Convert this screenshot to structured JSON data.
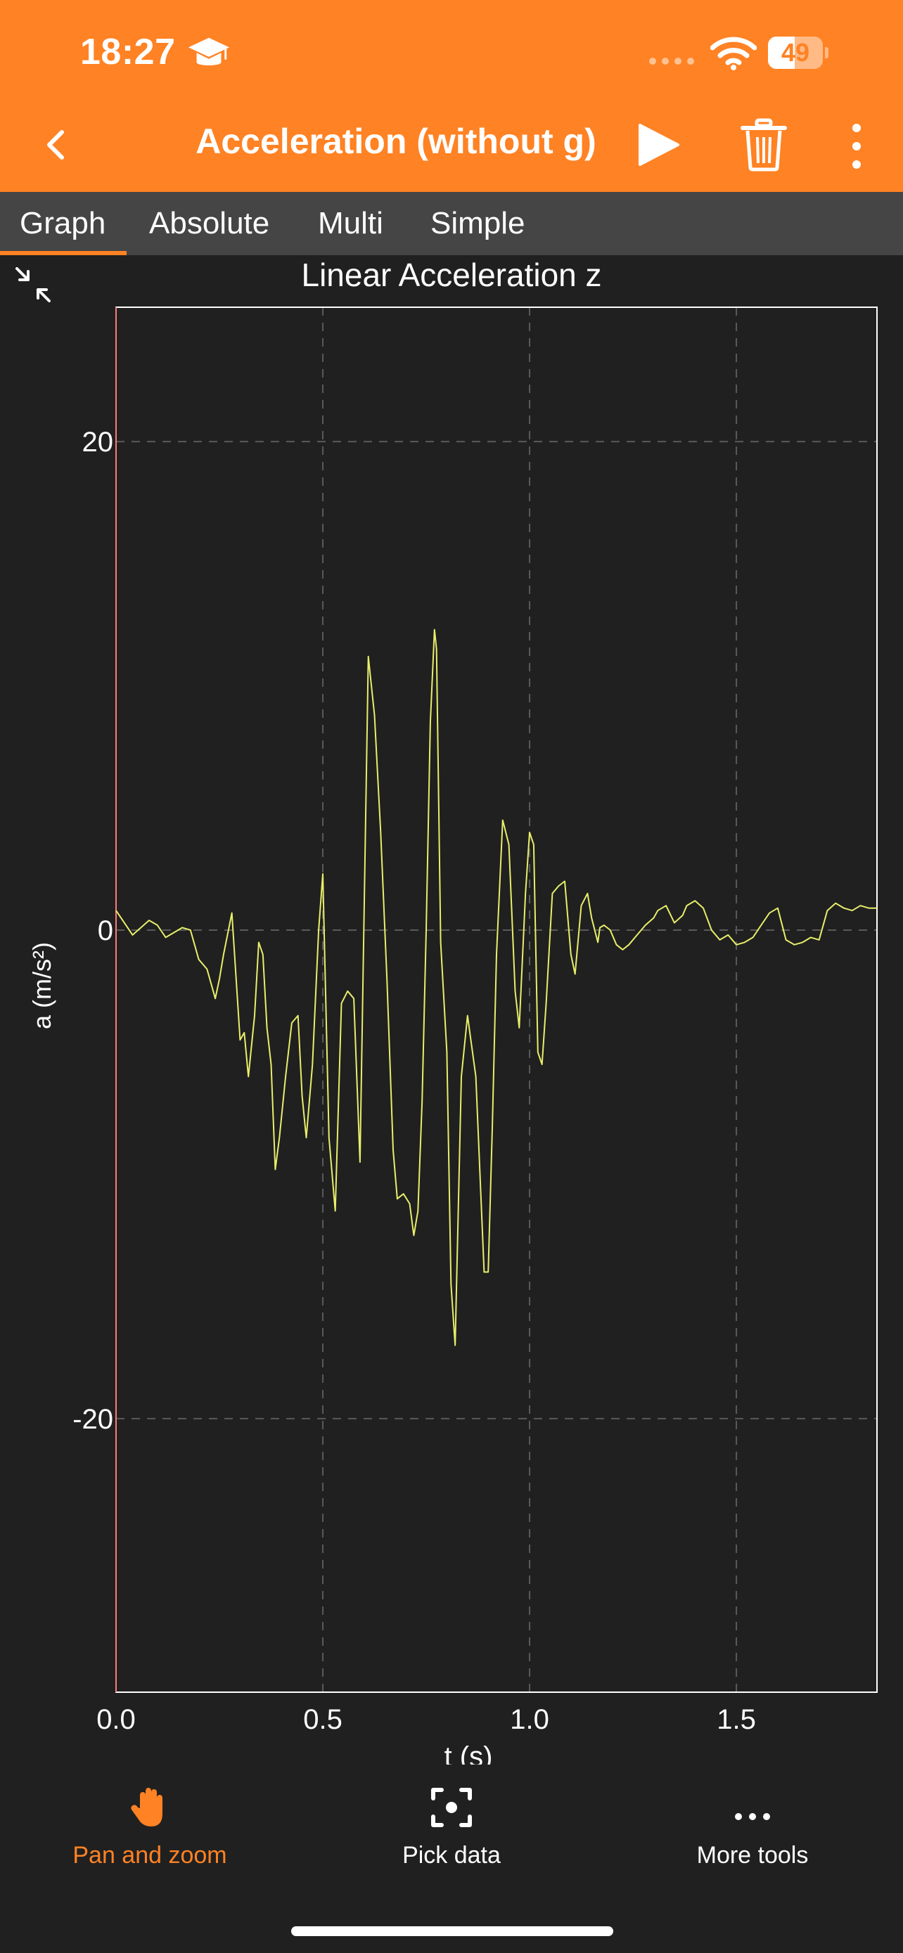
{
  "status_bar": {
    "time": "18:27",
    "battery": "49",
    "battery_level": 0.49
  },
  "header": {
    "title": "Acceleration (without g)"
  },
  "tabs": [
    {
      "label": "Graph",
      "active": true
    },
    {
      "label": "Absolute",
      "active": false
    },
    {
      "label": "Multi",
      "active": false
    },
    {
      "label": "Simple",
      "active": false
    }
  ],
  "toolbar": {
    "pan_zoom_label": "Pan and zoom",
    "pick_data_label": "Pick data",
    "more_tools_label": "More tools"
  },
  "colors": {
    "accent": "#ff8224",
    "background": "#202020",
    "tab_bar": "#454545",
    "series_line": "#e8ee6a"
  },
  "chart_data": {
    "type": "line",
    "title": "Linear Acceleration z",
    "xlabel": "t (s)",
    "ylabel": "a (m/s²)",
    "xlim": [
      0.0,
      1.84
    ],
    "ylim": [
      -31.2,
      25.5
    ],
    "x_ticks": [
      "0.0",
      "0.5",
      "1.0",
      "1.5"
    ],
    "y_ticks": [
      "20",
      "0",
      "-20"
    ],
    "grid": true,
    "series": [
      {
        "x": [
          0.0,
          0.02,
          0.04,
          0.06,
          0.08,
          0.1,
          0.12,
          0.14,
          0.16,
          0.18,
          0.2,
          0.22,
          0.24,
          0.25,
          0.26,
          0.28,
          0.3,
          0.31,
          0.32,
          0.335,
          0.345,
          0.355,
          0.365,
          0.375,
          0.385,
          0.395,
          0.41,
          0.425,
          0.44,
          0.45,
          0.46,
          0.475,
          0.49,
          0.5,
          0.515,
          0.53,
          0.545,
          0.56,
          0.575,
          0.59,
          0.61,
          0.625,
          0.64,
          0.655,
          0.67,
          0.68,
          0.695,
          0.71,
          0.72,
          0.73,
          0.74,
          0.75,
          0.76,
          0.77,
          0.775,
          0.785,
          0.8,
          0.81,
          0.82,
          0.835,
          0.85,
          0.87,
          0.89,
          0.9,
          0.91,
          0.92,
          0.935,
          0.95,
          0.965,
          0.975,
          0.99,
          1.0,
          1.01,
          1.02,
          1.03,
          1.04,
          1.055,
          1.07,
          1.085,
          1.1,
          1.11,
          1.125,
          1.14,
          1.15,
          1.165,
          1.17,
          1.18,
          1.195,
          1.21,
          1.225,
          1.24,
          1.26,
          1.28,
          1.3,
          1.31,
          1.33,
          1.35,
          1.37,
          1.38,
          1.4,
          1.42,
          1.44,
          1.46,
          1.48,
          1.5,
          1.52,
          1.54,
          1.56,
          1.58,
          1.6,
          1.62,
          1.64,
          1.66,
          1.68,
          1.7,
          1.72,
          1.74,
          1.76,
          1.78,
          1.8,
          1.82,
          1.84
        ],
        "y": [
          0.8,
          0.3,
          -0.2,
          0.1,
          0.4,
          0.2,
          -0.3,
          -0.1,
          0.1,
          0.0,
          -1.2,
          -1.6,
          -2.8,
          -2.0,
          -1.0,
          0.7,
          -4.5,
          -4.2,
          -6.0,
          -3.5,
          -0.5,
          -1.0,
          -4.0,
          -5.5,
          -9.8,
          -8.5,
          -6.0,
          -3.8,
          -3.5,
          -6.8,
          -8.5,
          -5.5,
          0.0,
          2.3,
          -8.5,
          -11.5,
          -3.0,
          -2.5,
          -2.8,
          -9.5,
          11.2,
          8.8,
          4.0,
          -2.0,
          -9.0,
          -11.0,
          -10.8,
          -11.2,
          -12.5,
          -11.5,
          -7.0,
          0.0,
          8.5,
          12.3,
          11.5,
          -0.5,
          -5.0,
          -14.5,
          -17.0,
          -6.0,
          -3.5,
          -6.0,
          -14.0,
          -14.0,
          -8.0,
          -1.0,
          4.5,
          3.5,
          -2.5,
          -4.0,
          1.5,
          4.0,
          3.5,
          -5.0,
          -5.5,
          -3.0,
          1.5,
          1.8,
          2.0,
          -1.0,
          -1.8,
          1.0,
          1.5,
          0.5,
          -0.5,
          0.1,
          0.2,
          0.0,
          -0.6,
          -0.8,
          -0.6,
          -0.2,
          0.2,
          0.5,
          0.8,
          1.0,
          0.3,
          0.6,
          1.0,
          1.2,
          0.9,
          0.0,
          -0.4,
          -0.2,
          -0.6,
          -0.5,
          -0.3,
          0.2,
          0.7,
          0.9,
          -0.4,
          -0.6,
          -0.5,
          -0.3,
          -0.4,
          0.8,
          1.1,
          0.9,
          0.8,
          1.0,
          0.9,
          0.9
        ]
      }
    ]
  }
}
